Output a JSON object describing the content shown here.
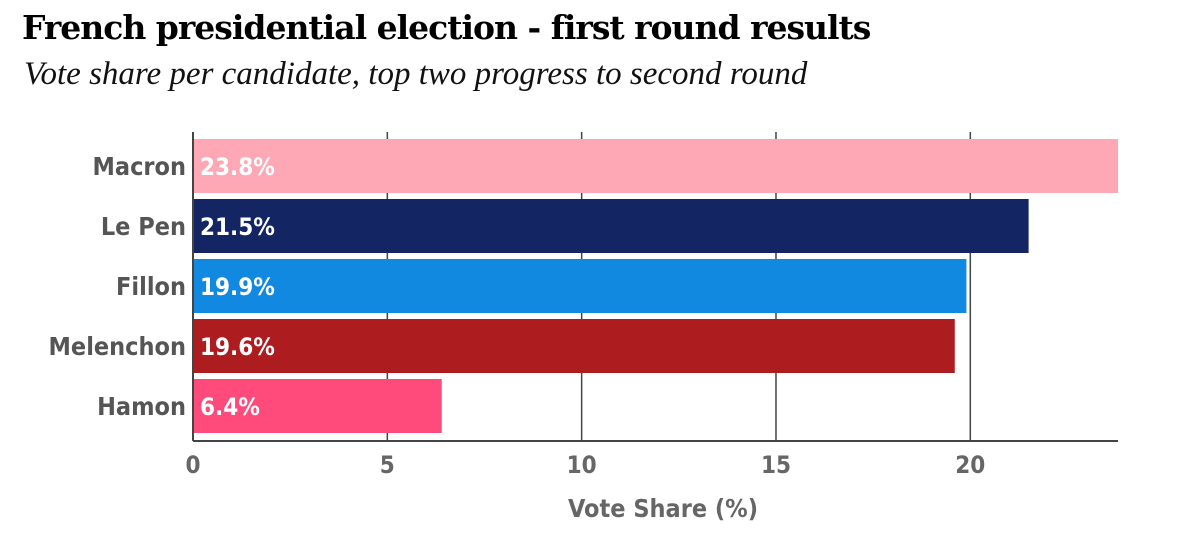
{
  "chart_data": {
    "type": "bar",
    "orientation": "horizontal",
    "title": "French presidential election - first round results",
    "subtitle": "Vote share per candidate, top two progress to second round",
    "categories": [
      "Macron",
      "Le Pen",
      "Fillon",
      "Melenchon",
      "Hamon"
    ],
    "values": [
      23.8,
      21.5,
      19.9,
      19.6,
      6.4
    ],
    "value_labels": [
      "23.8%",
      "21.5%",
      "19.9%",
      "19.6%",
      "6.4%"
    ],
    "colors": [
      "#ffa8b5",
      "#142563",
      "#1289e0",
      "#ad1c1e",
      "#ff4b7c"
    ],
    "xlabel": "Vote Share (%)",
    "ylabel": "",
    "xlim": [
      0,
      23.8
    ],
    "xticks": [
      0,
      5,
      10,
      15,
      20
    ],
    "grid": true
  }
}
